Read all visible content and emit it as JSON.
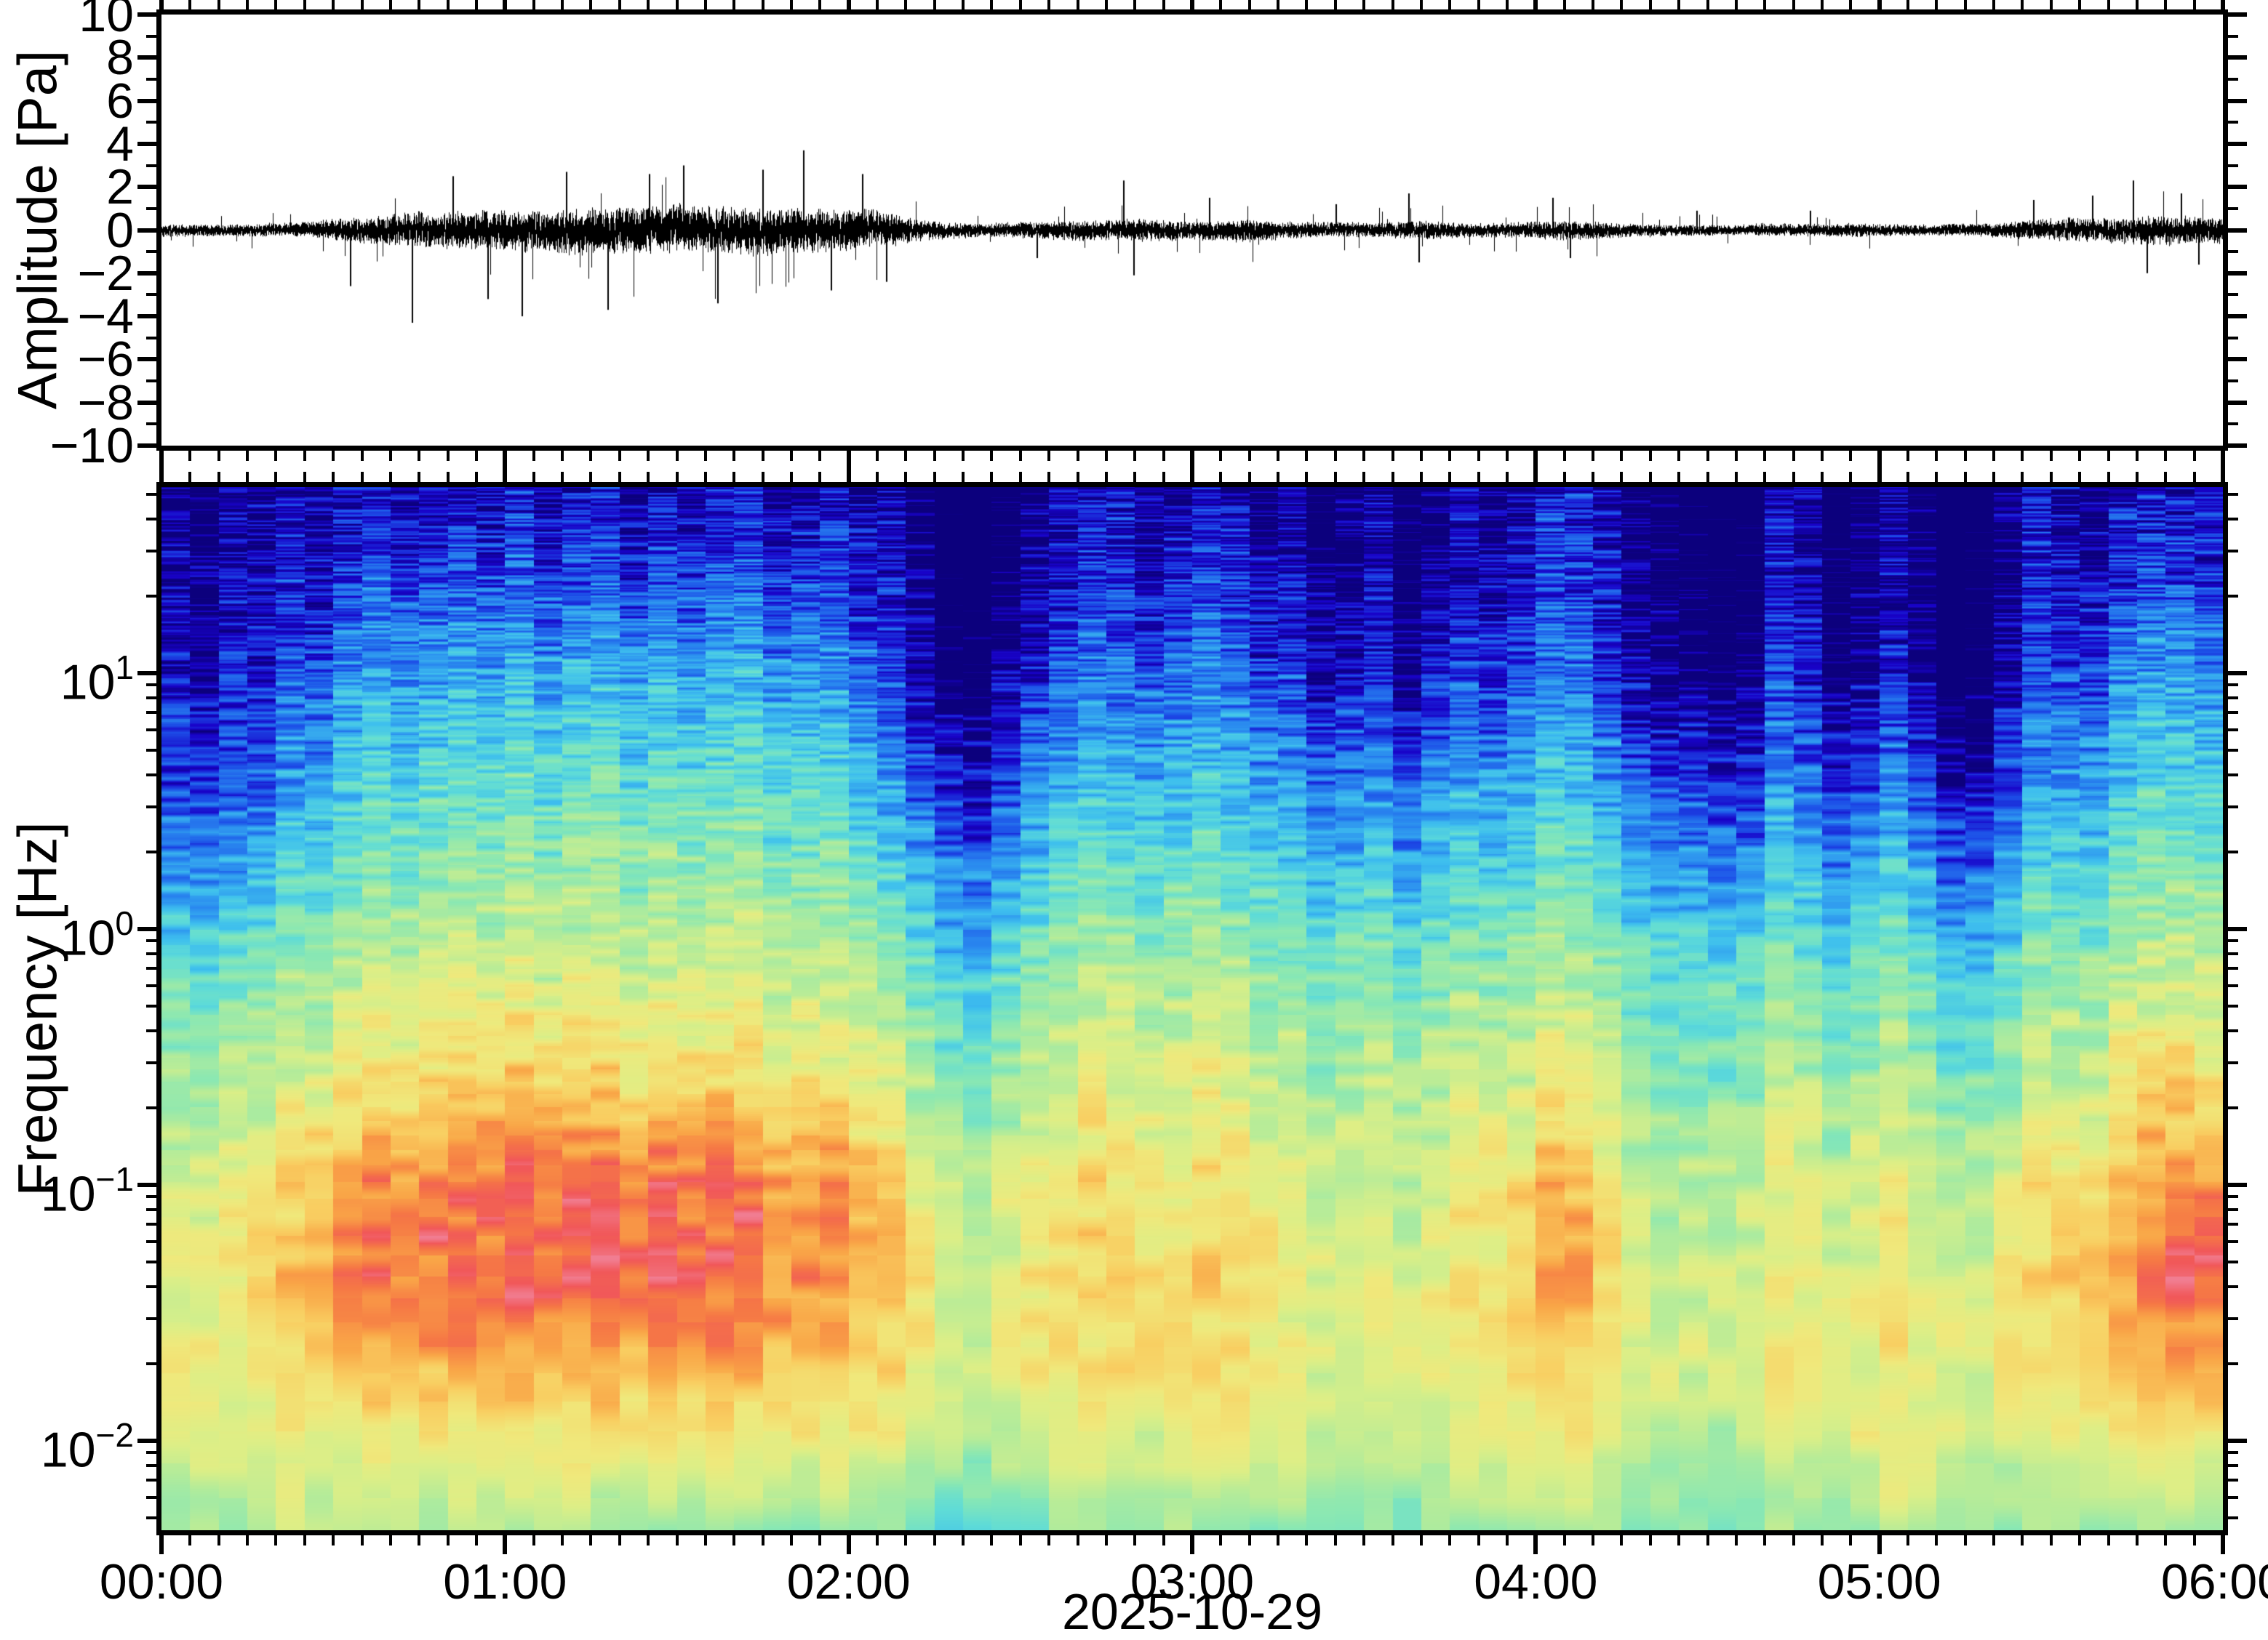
{
  "figure": {
    "date_label": "2025-10-29",
    "background": "#ffffff",
    "frame_color": "#000000",
    "trace_color": "#000000"
  },
  "chart_data": [
    {
      "type": "line",
      "title": "",
      "ylabel": "Amplitude [Pa]",
      "xlabel": "",
      "ylim": [
        -10,
        10
      ],
      "y_major_tick_labels": [
        "10",
        "8",
        "6",
        "4",
        "2",
        "0",
        "−2",
        "−4",
        "−6",
        "−8",
        "−10"
      ],
      "y_major_tick_values": [
        10,
        8,
        6,
        4,
        2,
        0,
        -2,
        -4,
        -6,
        -8,
        -10
      ],
      "y_minor_step": 1,
      "x_range_hours": [
        0,
        6
      ],
      "x_minor_interval_minutes": 5,
      "grid": false,
      "waveform": {
        "description": "Infrasound pressure trace, noisy around 0 Pa; active 00:30-02:10 (~±1 Pa, spikes to ±4), quiet 02:15-05:25 (~±0.3 Pa), re-intensifying after 05:30",
        "envelope_interval_minutes": 5,
        "envelope_pa": [
          0.28,
          0.26,
          0.25,
          0.27,
          0.3,
          0.33,
          0.45,
          0.58,
          0.68,
          0.75,
          0.8,
          0.85,
          0.85,
          0.9,
          0.95,
          1.0,
          1.0,
          1.05,
          1.05,
          1.0,
          1.05,
          1.0,
          1.0,
          0.95,
          0.9,
          0.8,
          0.55,
          0.4,
          0.32,
          0.3,
          0.35,
          0.4,
          0.42,
          0.45,
          0.5,
          0.45,
          0.4,
          0.45,
          0.5,
          0.4,
          0.35,
          0.35,
          0.32,
          0.35,
          0.4,
          0.35,
          0.3,
          0.32,
          0.38,
          0.45,
          0.4,
          0.3,
          0.26,
          0.25,
          0.24,
          0.25,
          0.28,
          0.28,
          0.26,
          0.3,
          0.28,
          0.26,
          0.25,
          0.28,
          0.32,
          0.4,
          0.48,
          0.52,
          0.55,
          0.6,
          0.65,
          0.6,
          0.62
        ],
        "spikes_hour_pa": [
          [
            0.55,
            -2.6
          ],
          [
            0.73,
            -4.3
          ],
          [
            0.85,
            2.5
          ],
          [
            0.95,
            -3.2
          ],
          [
            1.05,
            -4.0
          ],
          [
            1.18,
            2.7
          ],
          [
            1.3,
            -3.7
          ],
          [
            1.42,
            2.6
          ],
          [
            1.52,
            3.0
          ],
          [
            1.62,
            -3.4
          ],
          [
            1.75,
            2.8
          ],
          [
            1.87,
            3.7
          ],
          [
            1.95,
            -2.8
          ],
          [
            2.04,
            2.6
          ],
          [
            2.11,
            -2.4
          ],
          [
            2.55,
            -1.3
          ],
          [
            2.8,
            2.3
          ],
          [
            2.83,
            -2.1
          ],
          [
            3.05,
            1.5
          ],
          [
            3.42,
            1.2
          ],
          [
            3.63,
            1.7
          ],
          [
            3.66,
            -1.5
          ],
          [
            4.05,
            1.5
          ],
          [
            4.1,
            -1.3
          ],
          [
            4.47,
            0.9
          ],
          [
            4.8,
            0.9
          ],
          [
            5.45,
            1.4
          ],
          [
            5.62,
            1.6
          ],
          [
            5.74,
            2.3
          ],
          [
            5.78,
            -2.0
          ],
          [
            5.88,
            1.7
          ],
          [
            5.93,
            -1.6
          ]
        ]
      }
    },
    {
      "type": "heatmap",
      "title": "",
      "ylabel": "Frequency [Hz]",
      "xlabel": "2025-10-29",
      "yscale": "log",
      "ylim_hz": [
        0.00448,
        53.3
      ],
      "y_major_tick_labels": [
        {
          "mantissa": "10",
          "exponent": "1"
        },
        {
          "mantissa": "10",
          "exponent": "0"
        },
        {
          "mantissa": "10",
          "exponent": "−1"
        },
        {
          "mantissa": "10",
          "exponent": "−2"
        }
      ],
      "y_major_tick_values_hz": [
        10,
        1,
        0.1,
        0.01
      ],
      "x_tick_labels": [
        "00:00",
        "01:00",
        "02:00",
        "03:00",
        "04:00",
        "05:00",
        "06:00"
      ],
      "x_minor_interval_minutes": 5,
      "legend": "none (no colorbar shown)",
      "spectrogram": {
        "value_scale": "normalized relative spectral power, 0 = low (navy) to 1 = high (pink-red)",
        "time_bin_minutes": 5,
        "column_count": 72,
        "time_anchors_hours": [
          0,
          0.25,
          0.5,
          0.75,
          1.0,
          1.25,
          1.5,
          1.75,
          2.0,
          2.17,
          2.33,
          2.58,
          2.83,
          3.08,
          3.33,
          3.58,
          3.83,
          4.08,
          4.33,
          4.58,
          4.83,
          5.08,
          5.33,
          5.58,
          5.83,
          6.0
        ],
        "freq_anchors_log10hz": [
          1.73,
          1.4,
          1.0,
          0.6,
          0.2,
          -0.2,
          -0.6,
          -1.0,
          -1.35,
          -1.7,
          -2.0,
          -2.35
        ],
        "intensity_grid": [
          [
            0.03,
            0.03,
            0.05,
            0.06,
            0.06,
            0.06,
            0.06,
            0.05,
            0.05,
            0.03,
            0.02,
            0.02,
            0.03,
            0.03,
            0.03,
            0.02,
            0.02,
            0.03,
            0.02,
            0.02,
            0.02,
            0.02,
            0.02,
            0.03,
            0.04,
            0.04
          ],
          [
            0.04,
            0.05,
            0.12,
            0.15,
            0.15,
            0.16,
            0.15,
            0.14,
            0.12,
            0.06,
            0.05,
            0.06,
            0.08,
            0.09,
            0.07,
            0.05,
            0.06,
            0.08,
            0.04,
            0.05,
            0.04,
            0.04,
            0.03,
            0.06,
            0.1,
            0.09
          ],
          [
            0.07,
            0.09,
            0.22,
            0.28,
            0.29,
            0.3,
            0.29,
            0.28,
            0.24,
            0.12,
            0.1,
            0.13,
            0.17,
            0.18,
            0.14,
            0.1,
            0.13,
            0.16,
            0.08,
            0.1,
            0.08,
            0.09,
            0.06,
            0.14,
            0.24,
            0.22
          ],
          [
            0.13,
            0.16,
            0.33,
            0.4,
            0.41,
            0.42,
            0.41,
            0.4,
            0.36,
            0.22,
            0.18,
            0.25,
            0.3,
            0.3,
            0.26,
            0.22,
            0.26,
            0.28,
            0.18,
            0.22,
            0.18,
            0.2,
            0.14,
            0.26,
            0.36,
            0.34
          ],
          [
            0.26,
            0.3,
            0.45,
            0.5,
            0.52,
            0.53,
            0.52,
            0.5,
            0.47,
            0.36,
            0.32,
            0.38,
            0.42,
            0.42,
            0.38,
            0.36,
            0.38,
            0.4,
            0.32,
            0.36,
            0.32,
            0.34,
            0.28,
            0.38,
            0.47,
            0.46
          ],
          [
            0.43,
            0.46,
            0.57,
            0.61,
            0.63,
            0.64,
            0.63,
            0.62,
            0.58,
            0.5,
            0.47,
            0.52,
            0.55,
            0.54,
            0.51,
            0.5,
            0.52,
            0.53,
            0.47,
            0.5,
            0.47,
            0.48,
            0.44,
            0.52,
            0.59,
            0.59
          ],
          [
            0.53,
            0.57,
            0.7,
            0.74,
            0.75,
            0.76,
            0.75,
            0.73,
            0.7,
            0.6,
            0.56,
            0.6,
            0.64,
            0.62,
            0.58,
            0.57,
            0.6,
            0.62,
            0.52,
            0.57,
            0.55,
            0.56,
            0.53,
            0.6,
            0.71,
            0.73
          ],
          [
            0.61,
            0.67,
            0.84,
            0.9,
            0.92,
            0.93,
            0.92,
            0.9,
            0.86,
            0.72,
            0.66,
            0.7,
            0.72,
            0.7,
            0.66,
            0.64,
            0.68,
            0.8,
            0.6,
            0.66,
            0.64,
            0.66,
            0.64,
            0.72,
            0.86,
            0.9
          ],
          [
            0.66,
            0.71,
            0.86,
            0.93,
            0.95,
            0.95,
            0.94,
            0.92,
            0.88,
            0.76,
            0.7,
            0.72,
            0.73,
            0.72,
            0.68,
            0.66,
            0.7,
            0.84,
            0.62,
            0.68,
            0.66,
            0.7,
            0.68,
            0.76,
            0.9,
            0.92
          ],
          [
            0.68,
            0.7,
            0.79,
            0.83,
            0.84,
            0.84,
            0.83,
            0.82,
            0.8,
            0.74,
            0.7,
            0.7,
            0.72,
            0.72,
            0.68,
            0.66,
            0.7,
            0.76,
            0.66,
            0.68,
            0.66,
            0.72,
            0.7,
            0.74,
            0.84,
            0.85
          ],
          [
            0.62,
            0.63,
            0.68,
            0.7,
            0.71,
            0.7,
            0.7,
            0.69,
            0.68,
            0.65,
            0.62,
            0.62,
            0.64,
            0.64,
            0.62,
            0.6,
            0.63,
            0.66,
            0.6,
            0.62,
            0.62,
            0.72,
            0.64,
            0.64,
            0.68,
            0.68
          ],
          [
            0.55,
            0.56,
            0.58,
            0.57,
            0.55,
            0.53,
            0.52,
            0.52,
            0.5,
            0.48,
            0.46,
            0.48,
            0.52,
            0.52,
            0.5,
            0.5,
            0.52,
            0.54,
            0.5,
            0.52,
            0.52,
            0.56,
            0.54,
            0.52,
            0.52,
            0.52
          ]
        ],
        "column_jitter": [
          0.0,
          -0.02,
          0.01,
          -0.01,
          0.02,
          -0.03,
          0.01,
          0.03,
          -0.02,
          0.0,
          0.02,
          -0.01,
          0.03,
          -0.02,
          0.01,
          0.02,
          -0.03,
          0.01,
          -0.01,
          0.02,
          0.03,
          -0.02,
          0.0,
          0.02,
          -0.01,
          0.01,
          -0.04,
          -0.1,
          -0.12,
          -0.07,
          -0.02,
          0.02,
          0.05,
          0.03,
          -0.01,
          0.01,
          0.05,
          0.03,
          -0.02,
          0.0,
          -0.06,
          -0.03,
          0.01,
          -0.07,
          -0.02,
          0.02,
          -0.01,
          0.01,
          0.06,
          0.05,
          0.02,
          -0.03,
          -0.05,
          -0.07,
          -0.09,
          -0.08,
          0.04,
          0.01,
          -0.07,
          -0.03,
          0.02,
          -0.04,
          -0.11,
          -0.09,
          -0.02,
          0.05,
          0.02,
          -0.01,
          0.03,
          0.04,
          0.03,
          0.02
        ],
        "colormap_stops": [
          [
            0.0,
            "#0c0079"
          ],
          [
            0.08,
            "#1903c9"
          ],
          [
            0.16,
            "#1d4fe8"
          ],
          [
            0.24,
            "#2b8df0"
          ],
          [
            0.32,
            "#3fc0ee"
          ],
          [
            0.4,
            "#5fdcd8"
          ],
          [
            0.48,
            "#8ae8b4"
          ],
          [
            0.56,
            "#b5ec9a"
          ],
          [
            0.64,
            "#ddef87"
          ],
          [
            0.7,
            "#f0e97c"
          ],
          [
            0.78,
            "#f9cf62"
          ],
          [
            0.85,
            "#faa748"
          ],
          [
            0.91,
            "#f67a45"
          ],
          [
            0.96,
            "#f1585a"
          ],
          [
            1.0,
            "#f2849b"
          ]
        ],
        "features": [
          "strong red band 0.03-0.2 Hz all day, most intense (pink-red) 00:30-02:15",
          "broadband energy up to ~30 Hz during 00:30-02:10",
          "dark quiet columns 02:15-02:30 reaching down to ~2 Hz",
          "high-frequency quiet (navy) columns 04:20-05:25",
          "red low-frequency blob and renewed broadband energy 05:30-06:00",
          "lowest band ~0.005 Hz stays green-yellow with teal patches 01:00-02:30"
        ]
      }
    }
  ],
  "layout_note_visible_text_only": {
    "top_left_axis_title": "Amplitude [Pa]",
    "bottom_left_axis_title": "Frequency [Hz]",
    "bottom_axis_date": "2025-10-29"
  }
}
